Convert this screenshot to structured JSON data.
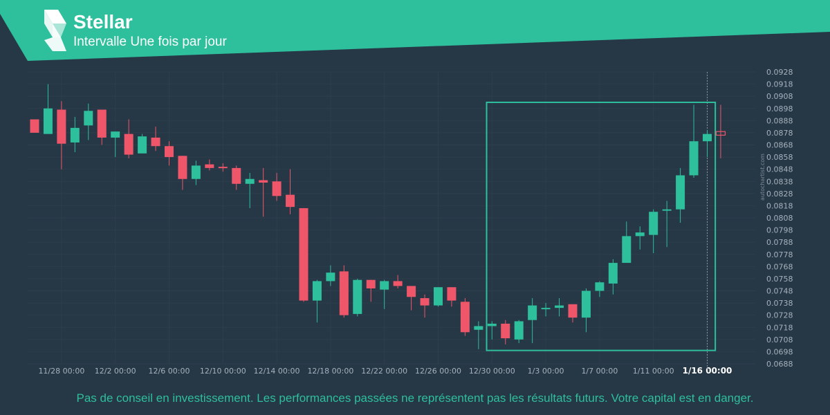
{
  "header": {
    "asset": "Stellar",
    "interval": "Intervalle Une fois par jour",
    "brand_color": "#2ebf9c",
    "logo_icon": "stellar-logo-icon"
  },
  "watermark": "autochartist.com",
  "disclaimer": "Pas de conseil en investissement. Les performances passées ne représentent pas les résultats futurs. Votre capital est en danger.",
  "colors": {
    "background": "#263746",
    "up": "#2ebf9c",
    "down": "#f0566a",
    "pattern_box": "#2ebf9c",
    "tick_text": "#a7b3bd",
    "grid": "#2d3e4d"
  },
  "chart_data": {
    "type": "candlestick",
    "y_axis_position": "right",
    "ylim": [
      0.0688,
      0.0928
    ],
    "yticks": [
      "0.0928",
      "0.0918",
      "0.0908",
      "0.0898",
      "0.0888",
      "0.0878",
      "0.0868",
      "0.0858",
      "0.0848",
      "0.0838",
      "0.0828",
      "0.0818",
      "0.0808",
      "0.0798",
      "0.0788",
      "0.0778",
      "0.0768",
      "0.0758",
      "0.0748",
      "0.0738",
      "0.0728",
      "0.0718",
      "0.0708",
      "0.0698",
      "0.0688"
    ],
    "x_ticks": [
      {
        "label": "11/28 00:00",
        "index": 2
      },
      {
        "label": "12/2 00:00",
        "index": 6
      },
      {
        "label": "12/6 00:00",
        "index": 10
      },
      {
        "label": "12/10 00:00",
        "index": 14
      },
      {
        "label": "12/14 00:00",
        "index": 18
      },
      {
        "label": "12/18 00:00",
        "index": 22
      },
      {
        "label": "12/22 00:00",
        "index": 26
      },
      {
        "label": "12/26 00:00",
        "index": 30
      },
      {
        "label": "12/30 00:00",
        "index": 34
      },
      {
        "label": "1/3 00:00",
        "index": 38
      },
      {
        "label": "1/7 00:00",
        "index": 42
      },
      {
        "label": "1/11 00:00",
        "index": 46
      },
      {
        "label": "1/16 00:00",
        "index": 50,
        "current": true
      }
    ],
    "pattern_box": {
      "start_index": 33.6,
      "end_index": 50.6,
      "top": 0.0903,
      "bottom": 0.0699
    },
    "candles": [
      {
        "o": 0.0889,
        "h": 0.0889,
        "l": 0.0878,
        "c": 0.0878
      },
      {
        "o": 0.0877,
        "h": 0.0918,
        "l": 0.0877,
        "c": 0.0898
      },
      {
        "o": 0.0897,
        "h": 0.0904,
        "l": 0.0848,
        "c": 0.0869
      },
      {
        "o": 0.087,
        "h": 0.0891,
        "l": 0.0862,
        "c": 0.0882
      },
      {
        "o": 0.0884,
        "h": 0.0902,
        "l": 0.0872,
        "c": 0.0896
      },
      {
        "o": 0.0897,
        "h": 0.0897,
        "l": 0.0868,
        "c": 0.0874
      },
      {
        "o": 0.0874,
        "h": 0.0879,
        "l": 0.0858,
        "c": 0.0879
      },
      {
        "o": 0.0877,
        "h": 0.0889,
        "l": 0.0857,
        "c": 0.086
      },
      {
        "o": 0.0861,
        "h": 0.0877,
        "l": 0.0861,
        "c": 0.0875
      },
      {
        "o": 0.0874,
        "h": 0.0883,
        "l": 0.0863,
        "c": 0.0867
      },
      {
        "o": 0.0867,
        "h": 0.0871,
        "l": 0.0851,
        "c": 0.0858
      },
      {
        "o": 0.0859,
        "h": 0.0859,
        "l": 0.0831,
        "c": 0.084
      },
      {
        "o": 0.084,
        "h": 0.0855,
        "l": 0.0835,
        "c": 0.0851
      },
      {
        "o": 0.0852,
        "h": 0.0856,
        "l": 0.0847,
        "c": 0.0849
      },
      {
        "o": 0.085,
        "h": 0.0853,
        "l": 0.0846,
        "c": 0.0849
      },
      {
        "o": 0.0849,
        "h": 0.0851,
        "l": 0.0831,
        "c": 0.0836
      },
      {
        "o": 0.0836,
        "h": 0.0845,
        "l": 0.0816,
        "c": 0.084
      },
      {
        "o": 0.0839,
        "h": 0.0849,
        "l": 0.0809,
        "c": 0.0837
      },
      {
        "o": 0.0838,
        "h": 0.0845,
        "l": 0.0822,
        "c": 0.0826
      },
      {
        "o": 0.0827,
        "h": 0.0848,
        "l": 0.0811,
        "c": 0.0817
      },
      {
        "o": 0.0816,
        "h": 0.0816,
        "l": 0.0739,
        "c": 0.074
      },
      {
        "o": 0.074,
        "h": 0.0757,
        "l": 0.0722,
        "c": 0.0756
      },
      {
        "o": 0.0756,
        "h": 0.0769,
        "l": 0.0752,
        "c": 0.0763
      },
      {
        "o": 0.0764,
        "h": 0.0769,
        "l": 0.0726,
        "c": 0.0728
      },
      {
        "o": 0.0729,
        "h": 0.0758,
        "l": 0.0727,
        "c": 0.0757
      },
      {
        "o": 0.0757,
        "h": 0.0757,
        "l": 0.0739,
        "c": 0.075
      },
      {
        "o": 0.0749,
        "h": 0.0757,
        "l": 0.0733,
        "c": 0.0756
      },
      {
        "o": 0.0756,
        "h": 0.0761,
        "l": 0.075,
        "c": 0.0752
      },
      {
        "o": 0.0752,
        "h": 0.0752,
        "l": 0.0732,
        "c": 0.0743
      },
      {
        "o": 0.0742,
        "h": 0.0745,
        "l": 0.0726,
        "c": 0.0736
      },
      {
        "o": 0.0736,
        "h": 0.0751,
        "l": 0.0735,
        "c": 0.0751
      },
      {
        "o": 0.0751,
        "h": 0.0751,
        "l": 0.0735,
        "c": 0.074
      },
      {
        "o": 0.0739,
        "h": 0.0742,
        "l": 0.0711,
        "c": 0.0714
      },
      {
        "o": 0.0716,
        "h": 0.0723,
        "l": 0.07,
        "c": 0.0719
      },
      {
        "o": 0.0719,
        "h": 0.0723,
        "l": 0.0708,
        "c": 0.0721
      },
      {
        "o": 0.0721,
        "h": 0.0724,
        "l": 0.0704,
        "c": 0.0709
      },
      {
        "o": 0.0708,
        "h": 0.0724,
        "l": 0.0705,
        "c": 0.0723
      },
      {
        "o": 0.0724,
        "h": 0.0742,
        "l": 0.0705,
        "c": 0.0736
      },
      {
        "o": 0.0734,
        "h": 0.0738,
        "l": 0.0727,
        "c": 0.0734
      },
      {
        "o": 0.0734,
        "h": 0.0742,
        "l": 0.0727,
        "c": 0.0736
      },
      {
        "o": 0.0737,
        "h": 0.0737,
        "l": 0.0722,
        "c": 0.0726
      },
      {
        "o": 0.0726,
        "h": 0.075,
        "l": 0.0714,
        "c": 0.0748
      },
      {
        "o": 0.0748,
        "h": 0.0756,
        "l": 0.0743,
        "c": 0.0755
      },
      {
        "o": 0.0754,
        "h": 0.0774,
        "l": 0.0745,
        "c": 0.0771
      },
      {
        "o": 0.0771,
        "h": 0.0805,
        "l": 0.0771,
        "c": 0.0793
      },
      {
        "o": 0.0793,
        "h": 0.0801,
        "l": 0.0782,
        "c": 0.0796
      },
      {
        "o": 0.0794,
        "h": 0.0815,
        "l": 0.0779,
        "c": 0.0813
      },
      {
        "o": 0.0814,
        "h": 0.0822,
        "l": 0.0784,
        "c": 0.0815
      },
      {
        "o": 0.0815,
        "h": 0.0849,
        "l": 0.0804,
        "c": 0.0843
      },
      {
        "o": 0.0843,
        "h": 0.0901,
        "l": 0.0841,
        "c": 0.0871
      },
      {
        "o": 0.0871,
        "h": 0.088,
        "l": 0.0858,
        "c": 0.0877
      },
      {
        "o": 0.0879,
        "h": 0.0901,
        "l": 0.0857,
        "c": 0.0876
      }
    ]
  }
}
